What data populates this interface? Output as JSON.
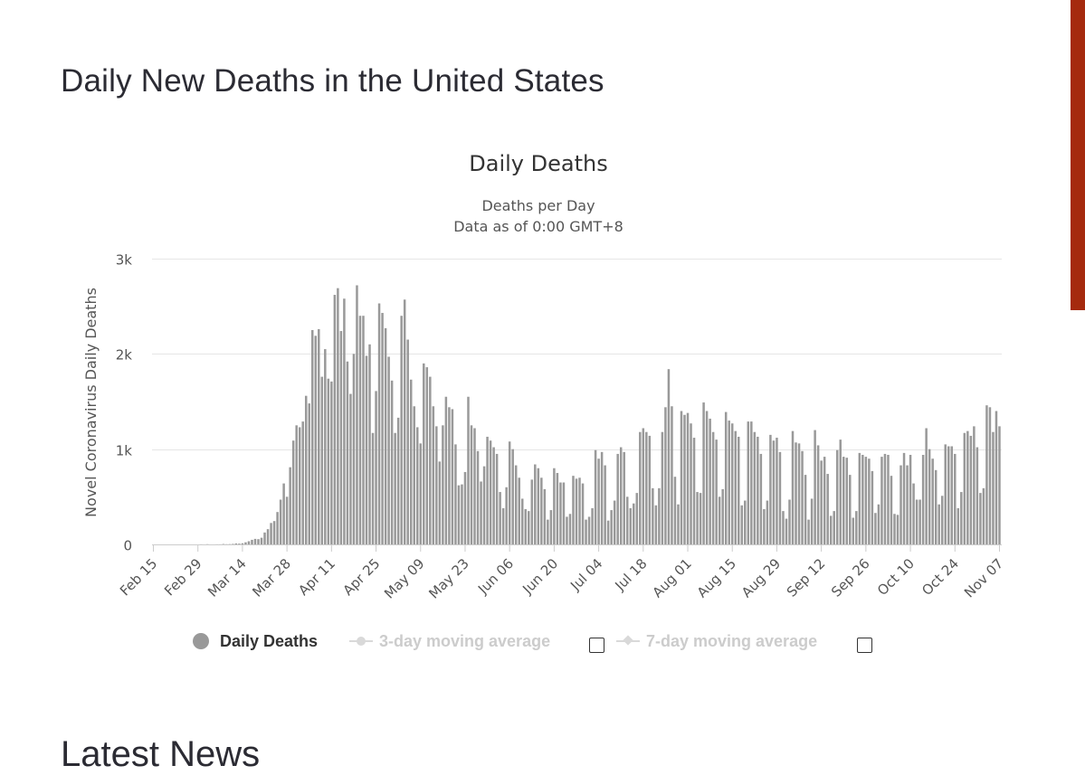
{
  "page": {
    "title": "Daily New Deaths in the United States",
    "next_section_title": "Latest News",
    "accent_color": "#a52a0e"
  },
  "chart_data": {
    "type": "bar",
    "title": "Daily Deaths",
    "subtitle_line1": "Deaths per Day",
    "subtitle_line2": "Data as of 0:00 GMT+8",
    "ylabel": "Novel Coronavirus Daily Deaths",
    "xlabel": "",
    "ylim": [
      0,
      3000
    ],
    "y_ticks": [
      {
        "value": 0,
        "label": "0"
      },
      {
        "value": 1000,
        "label": "1k"
      },
      {
        "value": 2000,
        "label": "2k"
      },
      {
        "value": 3000,
        "label": "3k"
      }
    ],
    "x_tick_labels": [
      "Feb 15",
      "Feb 29",
      "Mar 14",
      "Mar 28",
      "Apr 11",
      "Apr 25",
      "May 09",
      "May 23",
      "Jun 06",
      "Jun 20",
      "Jul 04",
      "Jul 18",
      "Aug 01",
      "Aug 15",
      "Aug 29",
      "Sep 12",
      "Sep 26",
      "Oct 10",
      "Oct 24",
      "Nov 07"
    ],
    "x_tick_interval_days": 14,
    "grid": true,
    "bar_color": "#999999",
    "start_date": "Feb 15",
    "series": [
      {
        "name": "Daily Deaths",
        "values": [
          0,
          0,
          0,
          0,
          0,
          0,
          0,
          0,
          0,
          0,
          0,
          0,
          0,
          0,
          0,
          1,
          0,
          2,
          0,
          0,
          1,
          1,
          4,
          2,
          3,
          5,
          10,
          8,
          12,
          22,
          33,
          48,
          58,
          55,
          70,
          125,
          160,
          225,
          245,
          340,
          470,
          640,
          500,
          810,
          1090,
          1250,
          1230,
          1290,
          1560,
          1480,
          2250,
          2190,
          2260,
          1760,
          2050,
          1740,
          1710,
          2620,
          2690,
          2240,
          2580,
          1920,
          1580,
          2000,
          2720,
          2400,
          2400,
          1980,
          2100,
          1170,
          1610,
          2530,
          2430,
          2270,
          1970,
          1720,
          1170,
          1330,
          2400,
          2570,
          2150,
          1730,
          1450,
          1230,
          1060,
          1900,
          1860,
          1760,
          1450,
          1240,
          870,
          1250,
          1550,
          1440,
          1420,
          1050,
          620,
          630,
          760,
          1550,
          1250,
          1220,
          980,
          660,
          820,
          1130,
          1090,
          1020,
          950,
          550,
          380,
          600,
          1080,
          1000,
          830,
          700,
          480,
          370,
          350,
          680,
          840,
          800,
          700,
          580,
          260,
          360,
          800,
          750,
          650,
          650,
          290,
          320,
          720,
          690,
          700,
          640,
          260,
          290,
          380,
          990,
          900,
          970,
          830,
          250,
          360,
          460,
          950,
          1020,
          970,
          500,
          380,
          430,
          540,
          1180,
          1220,
          1180,
          1140,
          590,
          410,
          590,
          1180,
          1440,
          1840,
          1450,
          710,
          420,
          1400,
          1360,
          1380,
          1270,
          1120,
          550,
          540,
          1490,
          1400,
          1320,
          1180,
          1100,
          500,
          580,
          1390,
          1300,
          1270,
          1190,
          1130,
          410,
          460,
          1290,
          1290,
          1180,
          1130,
          950,
          370,
          460,
          1150,
          1090,
          1120,
          970,
          350,
          270,
          470,
          1190,
          1070,
          1060,
          980,
          730,
          260,
          480,
          1200,
          1040,
          880,
          920,
          740,
          300,
          350,
          990,
          1100,
          920,
          910,
          730,
          280,
          350,
          960,
          940,
          920,
          900,
          770,
          330,
          420,
          920,
          950,
          940,
          720,
          320,
          310,
          830,
          960,
          830,
          940,
          640,
          470,
          470,
          940,
          1220,
          1000,
          900,
          780,
          420,
          510,
          1050,
          1030,
          1030,
          950,
          380,
          550,
          1170,
          1190,
          1140,
          1240,
          1020,
          540,
          590,
          1460,
          1440,
          1180,
          1400,
          1240
        ]
      }
    ],
    "legend": [
      {
        "name": "Daily Deaths",
        "enabled": true
      },
      {
        "name": "3-day moving average",
        "enabled": false
      },
      {
        "name": "7-day moving average",
        "enabled": false
      }
    ]
  }
}
